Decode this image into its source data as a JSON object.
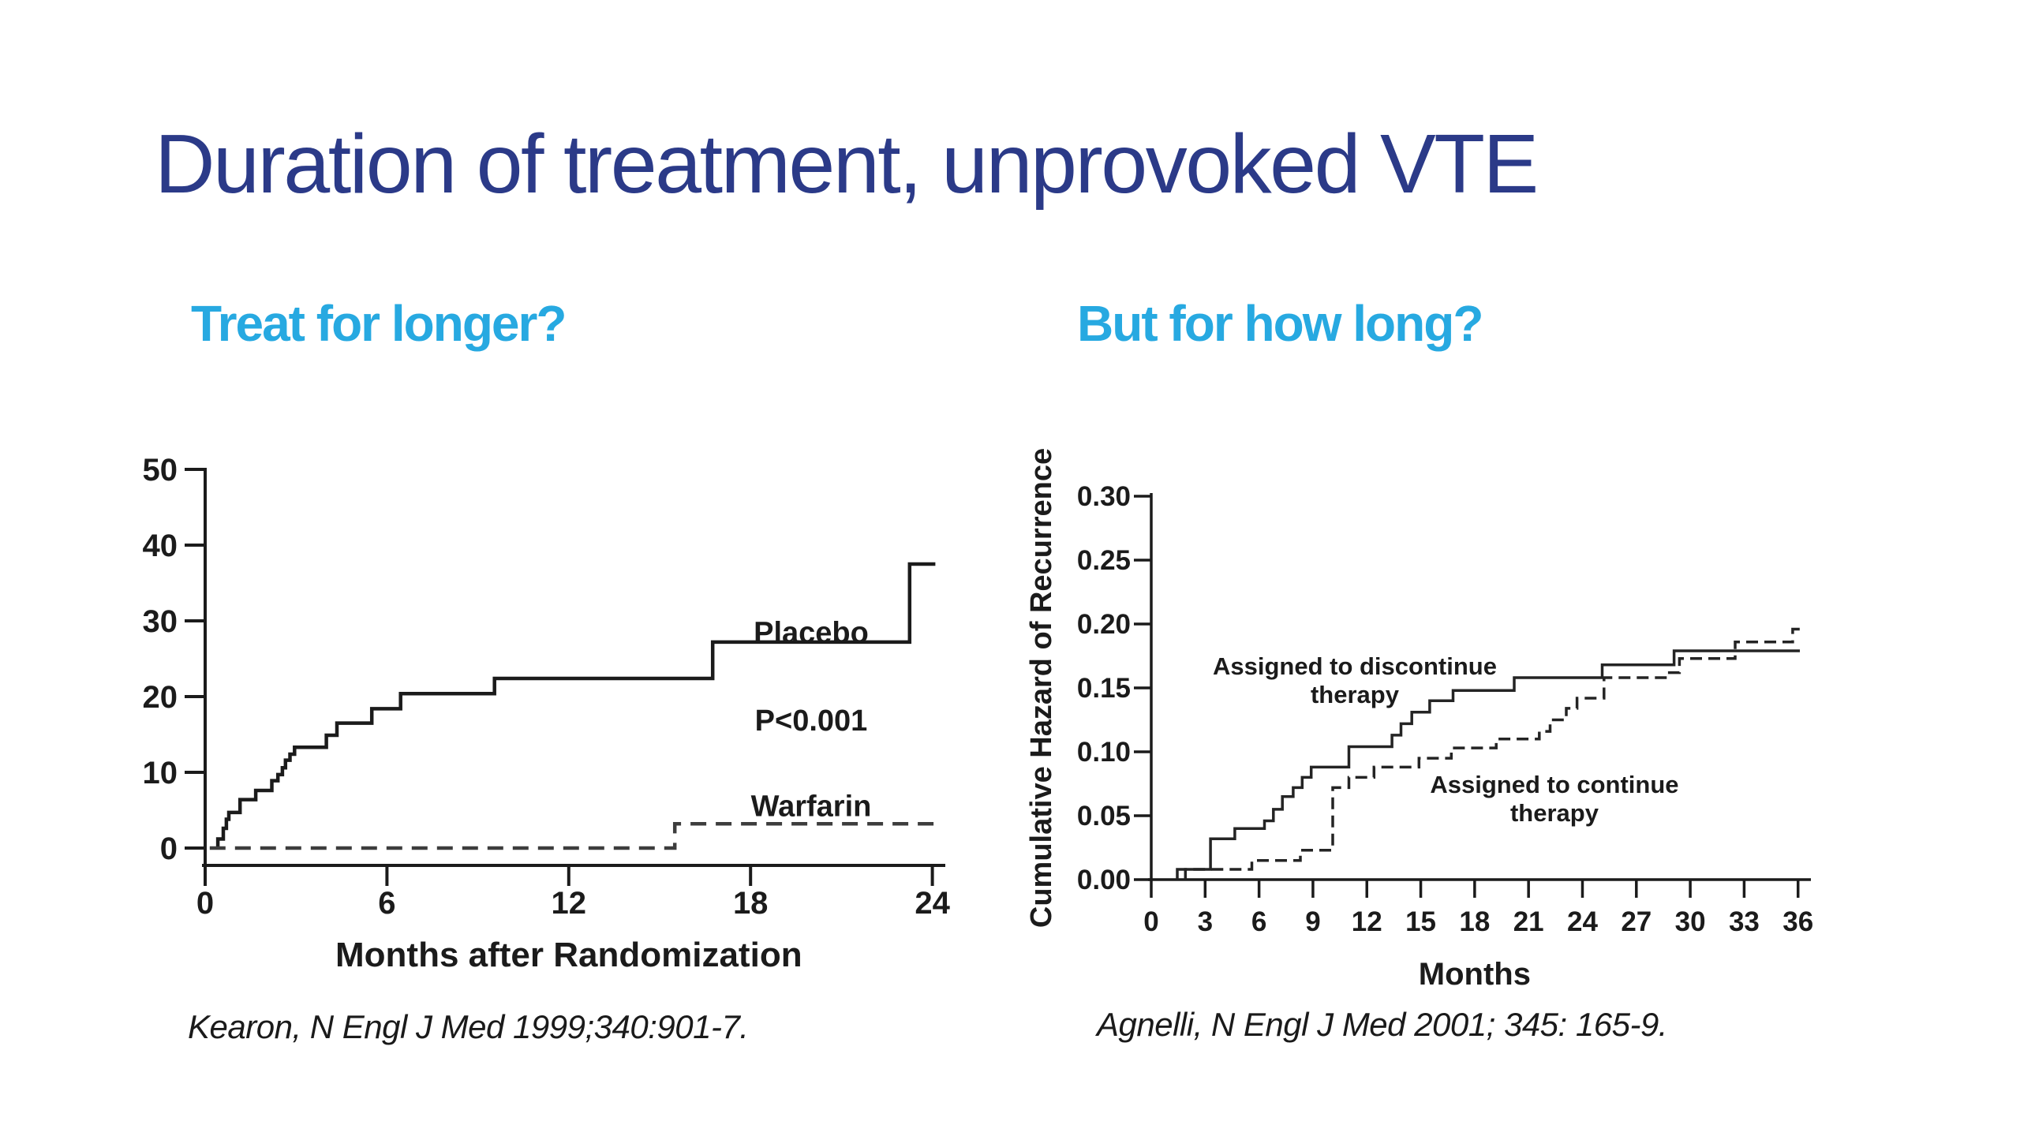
{
  "slide": {
    "title": "Duration of treatment, unprovoked VTE",
    "left_heading": "Treat for longer?",
    "right_heading": "But for how long?",
    "colors": {
      "title_navy": "#2b3a88",
      "heading_cyan": "#27a9e1",
      "chart_ink": "#1b1b1b"
    }
  },
  "citations": {
    "left": "Kearon, N Engl J Med 1999;340:901-7.",
    "right": "Agnelli, N Engl J Med 2001; 345: 165-9."
  },
  "chart_data": [
    {
      "type": "line",
      "title": "",
      "xlabel": "Months after Randomization",
      "ylabel": "",
      "xlim": [
        0,
        24
      ],
      "ylim": [
        0,
        50
      ],
      "grid": false,
      "legend_position": "inline-annotations",
      "xticks": [
        {
          "v": 0,
          "label": "0"
        },
        {
          "v": 6,
          "label": "6"
        },
        {
          "v": 12,
          "label": "12"
        },
        {
          "v": 18,
          "label": "18"
        },
        {
          "v": 24,
          "label": "24"
        }
      ],
      "yticks": [
        {
          "v": 0,
          "label": "0"
        },
        {
          "v": 10,
          "label": "10"
        },
        {
          "v": 20,
          "label": "20"
        },
        {
          "v": 30,
          "label": "30"
        },
        {
          "v": 40,
          "label": "40"
        },
        {
          "v": 50,
          "label": "50"
        }
      ],
      "annotations": [
        {
          "text": "Placebo",
          "x": 20.0,
          "y": 28.6
        },
        {
          "text": "P<0.001",
          "x": 20.0,
          "y": 17.0
        },
        {
          "text": "Warfarin",
          "x": 20.0,
          "y": 5.7
        }
      ],
      "series": [
        {
          "name": "Placebo",
          "line_style": "solid",
          "color": "#1b1b1b",
          "points": [
            [
              0.42,
              0
            ],
            [
              0.42,
              1.2
            ],
            [
              0.6,
              1.2
            ],
            [
              0.6,
              2.6
            ],
            [
              0.7,
              2.6
            ],
            [
              0.7,
              3.8
            ],
            [
              0.78,
              3.8
            ],
            [
              0.78,
              4.7
            ],
            [
              1.15,
              4.7
            ],
            [
              1.15,
              6.4
            ],
            [
              1.67,
              6.4
            ],
            [
              1.67,
              7.6
            ],
            [
              2.2,
              7.6
            ],
            [
              2.2,
              8.9
            ],
            [
              2.4,
              8.9
            ],
            [
              2.4,
              9.7
            ],
            [
              2.55,
              9.7
            ],
            [
              2.55,
              10.6
            ],
            [
              2.65,
              10.6
            ],
            [
              2.65,
              11.6
            ],
            [
              2.8,
              11.6
            ],
            [
              2.8,
              12.4
            ],
            [
              2.95,
              12.4
            ],
            [
              2.95,
              13.3
            ],
            [
              4.0,
              13.3
            ],
            [
              4.0,
              14.9
            ],
            [
              4.35,
              14.9
            ],
            [
              4.35,
              16.5
            ],
            [
              5.5,
              16.5
            ],
            [
              5.5,
              18.4
            ],
            [
              6.45,
              18.4
            ],
            [
              6.45,
              20.4
            ],
            [
              9.55,
              20.4
            ],
            [
              9.55,
              22.4
            ],
            [
              16.75,
              22.4
            ],
            [
              16.75,
              27.2
            ],
            [
              23.25,
              27.2
            ],
            [
              23.25,
              37.5
            ],
            [
              24.1,
              37.5
            ]
          ]
        },
        {
          "name": "Warfarin",
          "line_style": "dashed",
          "color": "#3d3d3d",
          "points": [
            [
              0.15,
              0
            ],
            [
              15.5,
              0
            ],
            [
              15.5,
              3.2
            ],
            [
              24.1,
              3.2
            ]
          ]
        }
      ]
    },
    {
      "type": "line",
      "title": "",
      "xlabel": "Months",
      "ylabel": "Cumulative Hazard of Recurrence",
      "xlim": [
        0,
        36
      ],
      "ylim": [
        0,
        0.3
      ],
      "grid": false,
      "legend_position": "inline-annotations",
      "xticks": [
        {
          "v": 0,
          "label": "0"
        },
        {
          "v": 3,
          "label": "3"
        },
        {
          "v": 6,
          "label": "6"
        },
        {
          "v": 9,
          "label": "9"
        },
        {
          "v": 12,
          "label": "12"
        },
        {
          "v": 15,
          "label": "15"
        },
        {
          "v": 18,
          "label": "18"
        },
        {
          "v": 21,
          "label": "21"
        },
        {
          "v": 24,
          "label": "24"
        },
        {
          "v": 27,
          "label": "27"
        },
        {
          "v": 30,
          "label": "30"
        },
        {
          "v": 33,
          "label": "33"
        },
        {
          "v": 36,
          "label": "36"
        }
      ],
      "yticks": [
        {
          "v": 0.0,
          "label": "0.00"
        },
        {
          "v": 0.05,
          "label": "0.05"
        },
        {
          "v": 0.1,
          "label": "0.10"
        },
        {
          "v": 0.15,
          "label": "0.15"
        },
        {
          "v": 0.2,
          "label": "0.20"
        },
        {
          "v": 0.25,
          "label": "0.25"
        },
        {
          "v": 0.3,
          "label": "0.30"
        }
      ],
      "annotations": [
        {
          "text": "Assigned to discontinue",
          "x": 11.33,
          "y": 0.168
        },
        {
          "text": "therapy",
          "x": 11.33,
          "y": 0.1457
        },
        {
          "text": "Assigned to continue",
          "x": 22.44,
          "y": 0.0753
        },
        {
          "text": "therapy",
          "x": 22.44,
          "y": 0.0531
        }
      ],
      "series": [
        {
          "name": "Assigned to discontinue therapy",
          "line_style": "solid",
          "color": "#242424",
          "points": [
            [
              1.45,
              0
            ],
            [
              1.45,
              0.008
            ],
            [
              3.3,
              0.008
            ],
            [
              3.3,
              0.032
            ],
            [
              4.65,
              0.032
            ],
            [
              4.65,
              0.04
            ],
            [
              6.3,
              0.04
            ],
            [
              6.3,
              0.046
            ],
            [
              6.8,
              0.046
            ],
            [
              6.8,
              0.055
            ],
            [
              7.3,
              0.055
            ],
            [
              7.3,
              0.065
            ],
            [
              7.9,
              0.065
            ],
            [
              7.9,
              0.072
            ],
            [
              8.4,
              0.072
            ],
            [
              8.4,
              0.08
            ],
            [
              8.9,
              0.08
            ],
            [
              8.9,
              0.088
            ],
            [
              11.0,
              0.088
            ],
            [
              11.0,
              0.104
            ],
            [
              13.4,
              0.104
            ],
            [
              13.4,
              0.113
            ],
            [
              13.9,
              0.113
            ],
            [
              13.9,
              0.122
            ],
            [
              14.5,
              0.122
            ],
            [
              14.5,
              0.131
            ],
            [
              15.5,
              0.131
            ],
            [
              15.5,
              0.14
            ],
            [
              16.8,
              0.14
            ],
            [
              16.8,
              0.148
            ],
            [
              20.2,
              0.148
            ],
            [
              20.2,
              0.158
            ],
            [
              25.1,
              0.158
            ],
            [
              25.1,
              0.168
            ],
            [
              29.1,
              0.168
            ],
            [
              29.1,
              0.179
            ],
            [
              36.1,
              0.179
            ]
          ]
        },
        {
          "name": "Assigned to continue therapy",
          "line_style": "dashed",
          "color": "#242424",
          "points": [
            [
              1.9,
              0
            ],
            [
              1.9,
              0.008
            ],
            [
              5.6,
              0.008
            ],
            [
              5.6,
              0.015
            ],
            [
              8.3,
              0.015
            ],
            [
              8.3,
              0.023
            ],
            [
              10.1,
              0.023
            ],
            [
              10.1,
              0.072
            ],
            [
              11.0,
              0.072
            ],
            [
              11.0,
              0.08
            ],
            [
              12.4,
              0.08
            ],
            [
              12.4,
              0.088
            ],
            [
              14.9,
              0.088
            ],
            [
              14.9,
              0.095
            ],
            [
              16.7,
              0.095
            ],
            [
              16.7,
              0.103
            ],
            [
              19.2,
              0.103
            ],
            [
              19.2,
              0.11
            ],
            [
              21.6,
              0.11
            ],
            [
              21.6,
              0.116
            ],
            [
              22.2,
              0.116
            ],
            [
              22.2,
              0.125
            ],
            [
              23.1,
              0.125
            ],
            [
              23.1,
              0.134
            ],
            [
              23.7,
              0.134
            ],
            [
              23.7,
              0.142
            ],
            [
              25.2,
              0.142
            ],
            [
              25.2,
              0.158
            ],
            [
              28.7,
              0.158
            ],
            [
              28.7,
              0.162
            ],
            [
              29.4,
              0.162
            ],
            [
              29.4,
              0.173
            ],
            [
              32.5,
              0.173
            ],
            [
              32.5,
              0.186
            ],
            [
              35.7,
              0.186
            ],
            [
              35.7,
              0.196
            ],
            [
              36.1,
              0.196
            ]
          ]
        }
      ]
    }
  ]
}
